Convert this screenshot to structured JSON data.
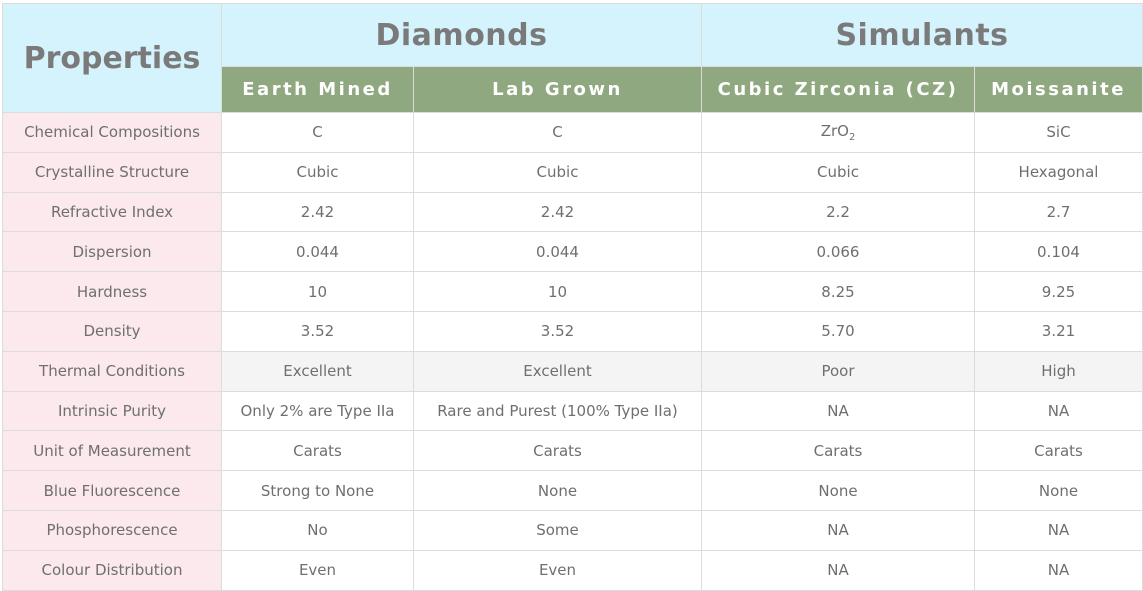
{
  "header": {
    "properties": "Properties",
    "groups": [
      "Diamonds",
      "Simulants"
    ],
    "columns": [
      "Earth Mined",
      "Lab Grown",
      "Cubic Zirconia (CZ)",
      "Moissanite"
    ]
  },
  "colors": {
    "header_bg": "#d5f3fd",
    "subheader_bg": "#8fa880",
    "label_bg": "#fbe9ee"
  },
  "rows": [
    {
      "label": "Chemical Compositions",
      "values": [
        "C",
        "C",
        "ZrO",
        "SiC"
      ],
      "cz_subscript": "2"
    },
    {
      "label": "Crystalline Structure",
      "values": [
        "Cubic",
        "Cubic",
        "Cubic",
        "Hexagonal"
      ]
    },
    {
      "label": "Refractive Index",
      "values": [
        "2.42",
        "2.42",
        "2.2",
        "2.7"
      ]
    },
    {
      "label": "Dispersion",
      "values": [
        "0.044",
        "0.044",
        "0.066",
        "0.104"
      ]
    },
    {
      "label": "Hardness",
      "values": [
        "10",
        "10",
        "8.25",
        "9.25"
      ]
    },
    {
      "label": "Density",
      "values": [
        "3.52",
        "3.52",
        "5.70",
        "3.21"
      ]
    },
    {
      "label": "Thermal Conditions",
      "values": [
        "Excellent",
        "Excellent",
        "Poor",
        "High"
      ]
    },
    {
      "label": "Intrinsic Purity",
      "values": [
        "Only 2% are Type IIa",
        "Rare and Purest (100% Type IIa)",
        "NA",
        "NA"
      ]
    },
    {
      "label": "Unit of Measurement",
      "values": [
        "Carats",
        "Carats",
        "Carats",
        "Carats"
      ]
    },
    {
      "label": "Blue Fluorescence",
      "values": [
        "Strong to None",
        "None",
        "None",
        "None"
      ]
    },
    {
      "label": "Phosphorescence",
      "values": [
        "No",
        "Some",
        "NA",
        "NA"
      ]
    },
    {
      "label": "Colour Distribution",
      "values": [
        "Even",
        "Even",
        "NA",
        "NA"
      ]
    }
  ]
}
